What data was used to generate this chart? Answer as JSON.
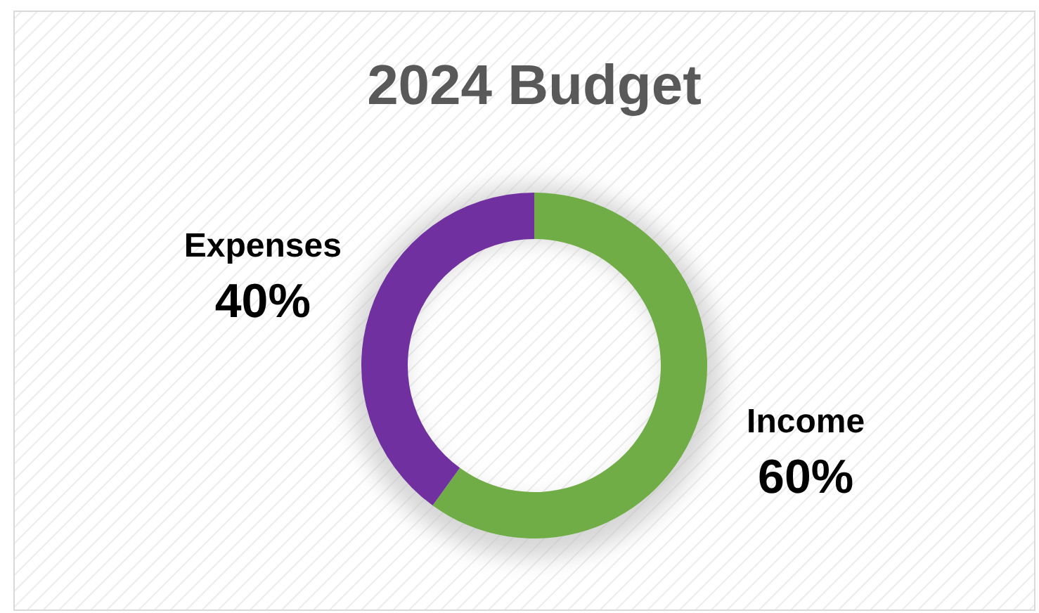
{
  "chart_data": {
    "type": "donut",
    "title": "2024 Budget",
    "categories": [
      "Income",
      "Expenses"
    ],
    "values": [
      60,
      40
    ],
    "colors": [
      "#70ad47",
      "#7030a0"
    ],
    "value_labels": [
      "60%",
      "40%"
    ],
    "legend": false
  }
}
